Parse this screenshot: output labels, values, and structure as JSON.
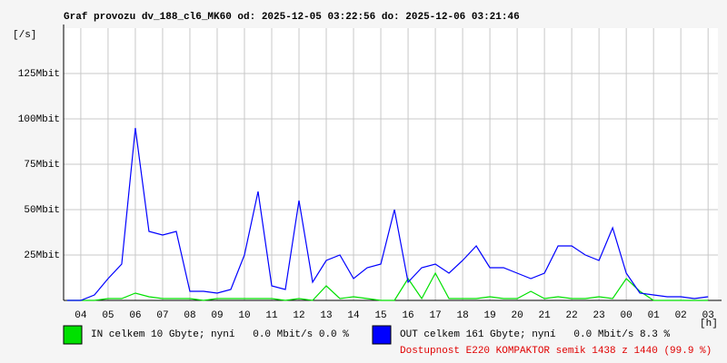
{
  "chart_data": {
    "type": "line",
    "title": "Graf provozu dv_188_cl6_MK60 od: 2025-12-05 03:22:56 do: 2025-12-06 03:21:46",
    "y_label": "[/s]",
    "x_label": "[h]",
    "x": [
      3.5,
      4.0,
      4.5,
      5.0,
      5.5,
      6.0,
      6.5,
      7.0,
      7.5,
      8.0,
      8.5,
      9.0,
      9.5,
      10.0,
      10.5,
      11.0,
      11.5,
      12.0,
      12.5,
      13.0,
      13.5,
      14.0,
      14.5,
      15.0,
      15.5,
      16.0,
      16.5,
      17.0,
      17.5,
      18.0,
      18.5,
      19.0,
      19.5,
      20.0,
      20.5,
      21.0,
      21.5,
      22.0,
      22.5,
      23.0,
      23.5,
      24.0,
      24.5,
      25.0,
      25.5,
      26.0,
      26.5,
      27.0
    ],
    "series": [
      {
        "name": "IN celkem 10 Gbyte; nyní   0.0 Mbit/s 0.0 %",
        "color": "#00e000",
        "values": [
          0,
          0,
          0,
          1,
          1,
          4,
          2,
          1,
          1,
          1,
          0,
          1,
          1,
          1,
          1,
          1,
          0,
          1,
          0,
          8,
          1,
          2,
          1,
          0,
          0,
          12,
          1,
          15,
          1,
          1,
          1,
          2,
          1,
          1,
          5,
          1,
          2,
          1,
          1,
          2,
          1,
          12,
          5,
          0,
          0,
          0,
          0,
          0
        ]
      },
      {
        "name": "OUT celkem 161 Gbyte; nyní   0.0 Mbit/s 8.3 %",
        "color": "#0000ff",
        "values": [
          0,
          0,
          3,
          12,
          20,
          95,
          38,
          36,
          38,
          5,
          5,
          4,
          6,
          25,
          60,
          8,
          6,
          55,
          10,
          22,
          25,
          12,
          18,
          20,
          50,
          10,
          18,
          20,
          15,
          22,
          30,
          18,
          18,
          15,
          12,
          15,
          30,
          30,
          25,
          22,
          40,
          15,
          4,
          3,
          2,
          2,
          1,
          2
        ]
      }
    ],
    "note": "Dostupnost E220 KOMPAKTOR semik 1438 z 1440 (99.9 %)",
    "xlim": [
      3.37,
      27.36
    ],
    "xticks": [
      {
        "value": 4,
        "label": "04"
      },
      {
        "value": 5,
        "label": "05"
      },
      {
        "value": 6,
        "label": "06"
      },
      {
        "value": 7,
        "label": "07"
      },
      {
        "value": 8,
        "label": "08"
      },
      {
        "value": 9,
        "label": "09"
      },
      10,
      11,
      12,
      13,
      14,
      15,
      16,
      17,
      18,
      19,
      20,
      21,
      22,
      23,
      {
        "value": 24,
        "label": "00"
      },
      {
        "value": 25,
        "label": "01"
      },
      {
        "value": 26,
        "label": "02"
      },
      {
        "value": 27,
        "label": "03"
      }
    ],
    "ylim": [
      0,
      150
    ],
    "yticks": [
      {
        "value": 25,
        "label": "25Mbit"
      },
      {
        "value": 50,
        "label": "50Mbit"
      },
      {
        "value": 75,
        "label": "75Mbit"
      },
      {
        "value": 100,
        "label": "100Mbit"
      },
      {
        "value": 125,
        "label": "125Mbit"
      }
    ],
    "grid": true
  }
}
